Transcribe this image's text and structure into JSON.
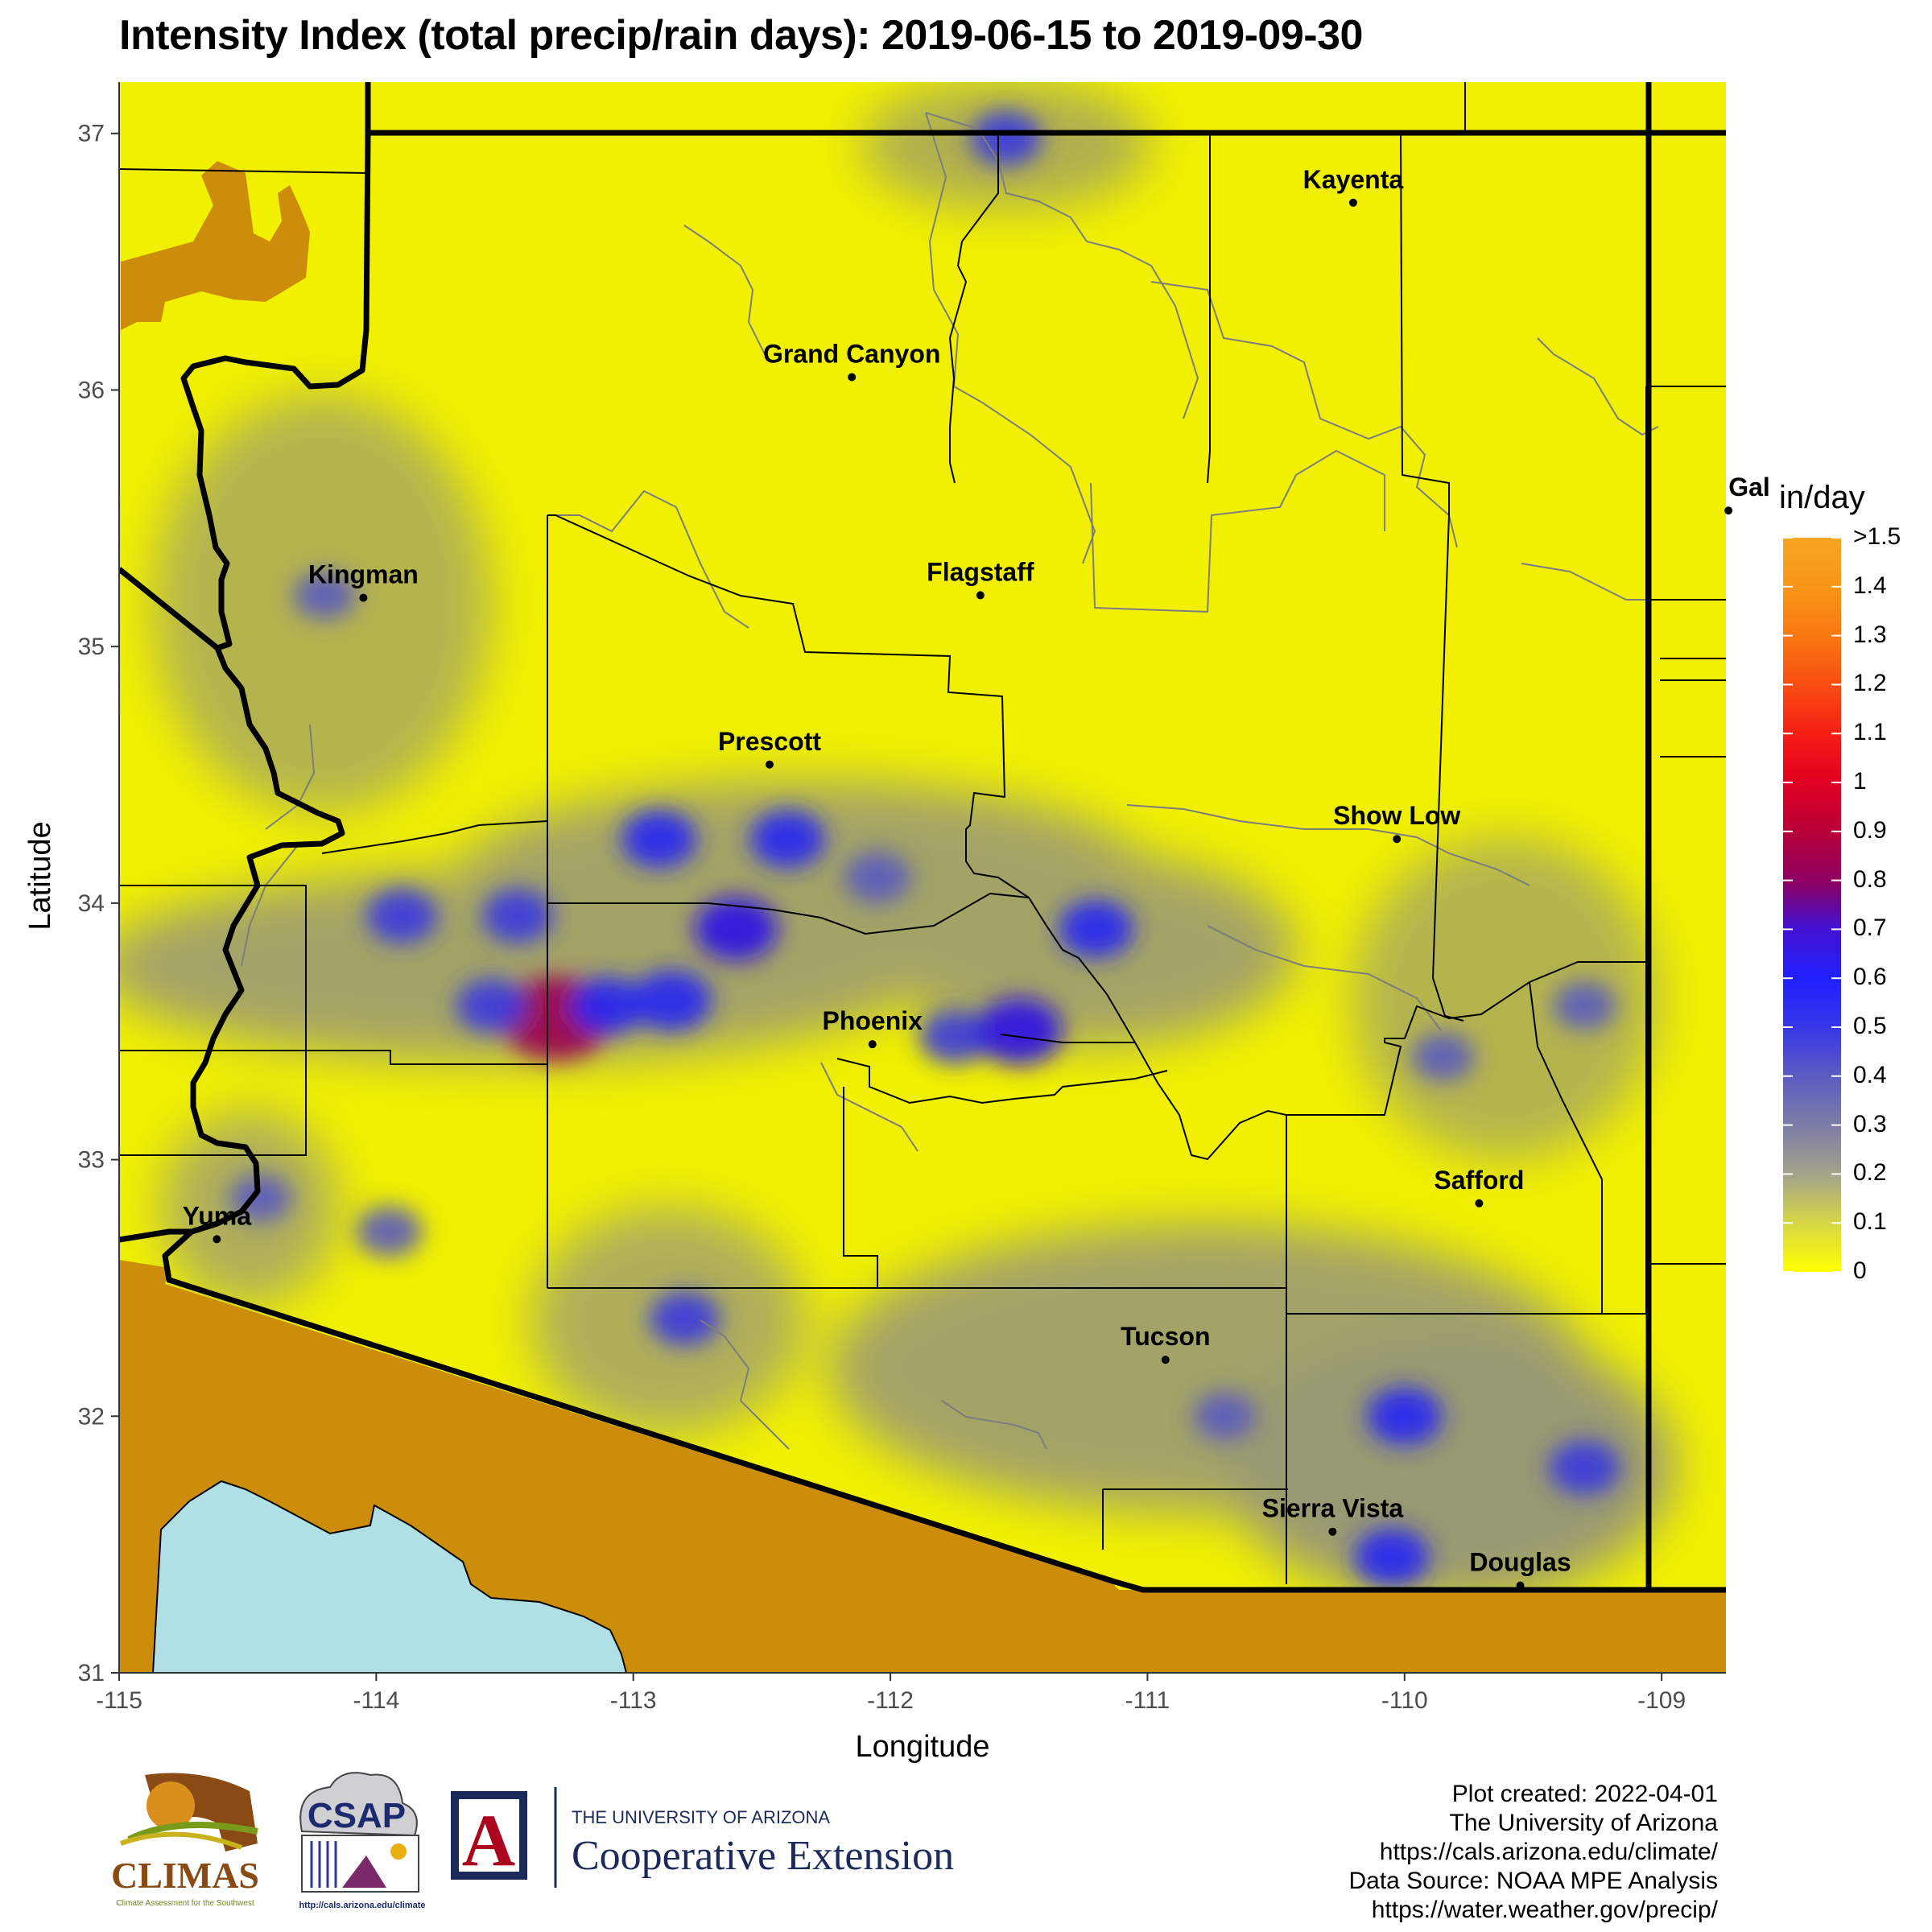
{
  "title": "Intensity Index (total precip/rain days): 2019-06-15 to 2019-09-30",
  "chart_data": {
    "type": "heatmap",
    "xlabel": "Longitude",
    "ylabel": "Latitude",
    "xlim": [
      -115,
      -108.75
    ],
    "ylim": [
      31,
      37.2
    ],
    "x_ticks": [
      "-115",
      "-114",
      "-113",
      "-112",
      "-111",
      "-110",
      "-109"
    ],
    "y_ticks": [
      "31",
      "32",
      "33",
      "34",
      "35",
      "36",
      "37"
    ],
    "grid": false,
    "legend": {
      "title": "in/day",
      "position": "right",
      "labels": [
        ">1.5",
        "1.4",
        "1.3",
        "1.2",
        "1.1",
        "1",
        "0.9",
        "0.8",
        "0.7",
        "0.6",
        "0.5",
        "0.4",
        "0.3",
        "0.2",
        "0.1",
        "0"
      ],
      "colors": [
        "#f6a623",
        "#f97a10",
        "#f84d12",
        "#f51c14",
        "#e30020",
        "#b80038",
        "#8c0063",
        "#6a08a0",
        "#3d14d8",
        "#1d1fff",
        "#3838e6",
        "#5a5ac4",
        "#7c7ca8",
        "#a5a588",
        "#d4d44a",
        "#ffff00"
      ]
    },
    "cities": [
      {
        "name": "Kayenta",
        "lon": -110.2,
        "lat": 36.73
      },
      {
        "name": "Grand Canyon",
        "lon": -112.15,
        "lat": 36.05
      },
      {
        "name": "Kingman",
        "lon": -114.05,
        "lat": 35.19
      },
      {
        "name": "Flagstaff",
        "lon": -111.65,
        "lat": 35.2
      },
      {
        "name": "Prescott",
        "lon": -112.47,
        "lat": 34.54
      },
      {
        "name": "Show Low",
        "lon": -110.03,
        "lat": 34.25
      },
      {
        "name": "Phoenix",
        "lon": -112.07,
        "lat": 33.45
      },
      {
        "name": "Safford",
        "lon": -109.71,
        "lat": 32.83
      },
      {
        "name": "Yuma",
        "lon": -114.62,
        "lat": 32.69
      },
      {
        "name": "Tucson",
        "lon": -110.93,
        "lat": 32.22
      },
      {
        "name": "Sierra Vista",
        "lon": -110.28,
        "lat": 31.55
      },
      {
        "name": "Douglas",
        "lon": -109.55,
        "lat": 31.34
      },
      {
        "name": "Gal",
        "lon": -108.74,
        "lat": 35.53
      }
    ],
    "precip_hotspots": [
      {
        "lon": -113.3,
        "lat": 33.55,
        "value": 0.85
      },
      {
        "lon": -112.85,
        "lat": 33.62,
        "value": 0.5
      },
      {
        "lon": -112.6,
        "lat": 33.9,
        "value": 0.55
      },
      {
        "lon": -112.9,
        "lat": 34.25,
        "value": 0.45
      },
      {
        "lon": -112.4,
        "lat": 34.25,
        "value": 0.45
      },
      {
        "lon": -111.2,
        "lat": 33.9,
        "value": 0.45
      },
      {
        "lon": -113.1,
        "lat": 33.6,
        "value": 0.45
      },
      {
        "lon": -113.45,
        "lat": 33.95,
        "value": 0.4
      },
      {
        "lon": -113.9,
        "lat": 33.95,
        "value": 0.4
      },
      {
        "lon": -113.55,
        "lat": 33.6,
        "value": 0.4
      },
      {
        "lon": -111.75,
        "lat": 33.48,
        "value": 0.4
      },
      {
        "lon": -111.5,
        "lat": 33.5,
        "value": 0.6
      },
      {
        "lon": -112.05,
        "lat": 34.1,
        "value": 0.35
      },
      {
        "lon": -112.8,
        "lat": 32.38,
        "value": 0.4
      },
      {
        "lon": -110.0,
        "lat": 32.0,
        "value": 0.45
      },
      {
        "lon": -109.3,
        "lat": 31.8,
        "value": 0.4
      },
      {
        "lon": -110.05,
        "lat": 31.45,
        "value": 0.45
      },
      {
        "lon": -111.55,
        "lat": 36.98,
        "value": 0.4
      },
      {
        "lon": -113.95,
        "lat": 32.72,
        "value": 0.35
      },
      {
        "lon": -114.45,
        "lat": 32.85,
        "value": 0.3
      },
      {
        "lon": -114.2,
        "lat": 35.2,
        "value": 0.3
      },
      {
        "lon": -110.7,
        "lat": 32.0,
        "value": 0.3
      },
      {
        "lon": -109.85,
        "lat": 33.4,
        "value": 0.3
      },
      {
        "lon": -109.3,
        "lat": 33.6,
        "value": 0.3
      }
    ],
    "high_value_zones": [
      {
        "region": "northwest corner",
        "value": ">1.5"
      },
      {
        "region": "outside Arizona south of the border",
        "value": ">1.5"
      }
    ],
    "water_body": "Gulf of California"
  },
  "credits": {
    "line1": "Plot created: 2022-04-01",
    "line2": "The University of Arizona",
    "line3": "https://cals.arizona.edu/climate/",
    "line4": "Data Source: NOAA MPE Analysis",
    "line5": "https://water.weather.gov/precip/"
  },
  "logos": {
    "climas": "CLIMAS",
    "climas_sub": "Climate Assessment for the Southwest",
    "csap": "CSAP",
    "csap_url": "http://cals.arizona.edu/climate",
    "ua_top": "THE UNIVERSITY OF ARIZONA",
    "ua_bottom": "Cooperative Extension",
    "ua_letter": "A"
  },
  "colors": {
    "background_fill": "#f2f200",
    "outside_fill": "#cc8e0a",
    "water": "#b0e0e6",
    "state_border": "#000000",
    "county_border": "#000000",
    "reservation_border": "#808080"
  }
}
